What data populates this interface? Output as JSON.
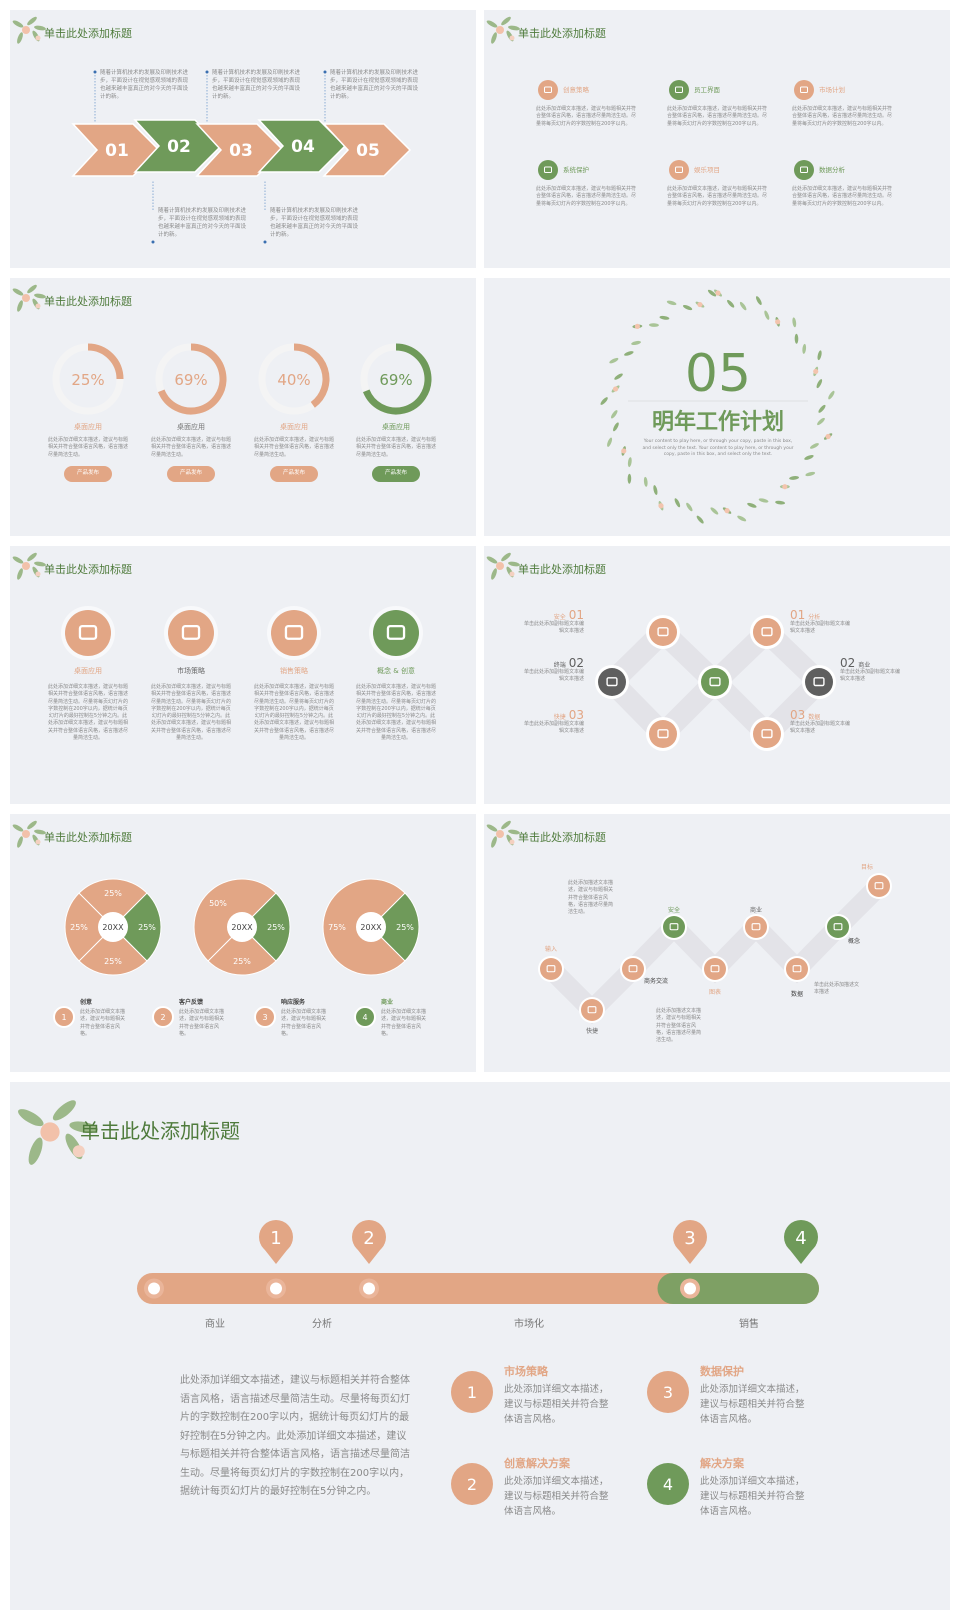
{
  "slide1": {
    "title": "单击此处添加标题",
    "steps": [
      "01",
      "02",
      "03",
      "04",
      "05"
    ],
    "paragraphs": [
      "随着计算机技术的发展及印刷技术进步，平面设计在视觉感观领域的表现也越来越丰富真正的对今天的平面设计的新。",
      "随着计算机技术的发展及印刷技术进步，平面设计在视觉感观领域的表现也越来越丰富真正的对今天的平面设计的新。",
      "随着计算机技术的发展及印刷技术进步，平面设计在视觉感观领域的表现也越来越丰富真正的对今天的平面设计的新。",
      "随着计算机技术的发展及印刷技术进步，平面设计在视觉感观领域的表现也越来越丰富真正的对今天的平面设计的新。",
      "随着计算机技术的发展及印刷技术进步，平面设计在视觉感观领域的表现也越来越丰富真正的对今天的平面设计的新。"
    ]
  },
  "slide2": {
    "title": "单击此处添加标题",
    "items": [
      {
        "name": "创意策略",
        "desc": "此处添加详细文本描述，建议与标题相关并符合整体语言风格，语言描述尽量简洁生动。尽量将每页幻灯片的字数控制在200字以内。"
      },
      {
        "name": "员工界面",
        "desc": "此处添加详细文本描述，建议与标题相关并符合整体语言风格，语言描述尽量简洁生动。尽量将每页幻灯片的字数控制在200字以内。"
      },
      {
        "name": "市场计划",
        "desc": "此处添加详细文本描述，建议与标题相关并符合整体语言风格，语言描述尽量简洁生动。尽量将每页幻灯片的字数控制在200字以内。"
      },
      {
        "name": "系统保护",
        "desc": "此处添加详细文本描述，建议与标题相关并符合整体语言风格，语言描述尽量简洁生动。尽量将每页幻灯片的字数控制在200字以内。"
      },
      {
        "name": "娱乐项目",
        "desc": "此处添加详细文本描述，建议与标题相关并符合整体语言风格，语言描述尽量简洁生动。尽量将每页幻灯片的字数控制在200字以内。"
      },
      {
        "name": "数据分析",
        "desc": "此处添加详细文本描述，建议与标题相关并符合整体语言风格，语言描述尽量简洁生动。尽量将每页幻灯片的字数控制在200字以内。"
      }
    ]
  },
  "slide3": {
    "title": "单击此处添加标题",
    "rings": [
      {
        "value": 25,
        "value_label": "25%",
        "name": "桌面应用",
        "desc": "此处添加详细文本描述，建议与标题相关并符合整体语言风格，语言描述尽量简洁生动。",
        "button": "产品发布"
      },
      {
        "value": 69,
        "value_label": "69%",
        "name": "桌面应用",
        "desc": "此处添加详细文本描述，建议与标题相关并符合整体语言风格，语言描述尽量简洁生动。",
        "button": "产品发布"
      },
      {
        "value": 40,
        "value_label": "40%",
        "name": "桌面应用",
        "desc": "此处添加详细文本描述，建议与标题相关并符合整体语言风格，语言描述尽量简洁生动。",
        "button": "产品发布"
      },
      {
        "value": 69,
        "value_label": "69%",
        "name": "桌面应用",
        "desc": "此处添加详细文本描述，建议与标题相关并符合整体语言风格，语言描述尽量简洁生动。",
        "button": "产品发布"
      }
    ]
  },
  "slide4": {
    "number": "05",
    "title": "明年工作计划",
    "subtitle": "Your content to play here, or through your copy, paste in this box, and select only the text. Your content to play here, or through your copy, paste in this box, and select only the text."
  },
  "slide5": {
    "title": "单击此处添加标题",
    "items": [
      {
        "name": "桌面应用",
        "desc": "此处添加详细文本描述，建议与标题相关并符合整体语言风格，语言描述尽量简洁生动。尽量将每页幻灯片的字数控制在200字以内，据统计每页幻灯片的最好控制在5分钟之内。此处添加详细文本描述，建议与标题相关并符合整体语言风格，语言描述尽量简洁生动。"
      },
      {
        "name": "市场策略",
        "desc": "此处添加详细文本描述，建议与标题相关并符合整体语言风格，语言描述尽量简洁生动。尽量将每页幻灯片的字数控制在200字以内，据统计每页幻灯片的最好控制在5分钟之内。此处添加详细文本描述，建议与标题相关并符合整体语言风格，语言描述尽量简洁生动。"
      },
      {
        "name": "销售策略",
        "desc": "此处添加详细文本描述，建议与标题相关并符合整体语言风格，语言描述尽量简洁生动。尽量将每页幻灯片的字数控制在200字以内，据统计每页幻灯片的最好控制在5分钟之内。此处添加详细文本描述，建议与标题相关并符合整体语言风格，语言描述尽量简洁生动。"
      },
      {
        "name": "概念 & 创意",
        "desc": "此处添加详细文本描述，建议与标题相关并符合整体语言风格，语言描述尽量简洁生动。尽量将每页幻灯片的字数控制在200字以内，据统计每页幻灯片的最好控制在5分钟之内。此处添加详细文本描述，建议与标题相关并符合整体语言风格，语言描述尽量简洁生动。"
      }
    ]
  },
  "slide6": {
    "title": "单击此处添加标题",
    "items": [
      {
        "name": "安全",
        "number": "01",
        "desc": "单击此处添加副标题文本编辑文本描述"
      },
      {
        "name": "终端",
        "number": "02",
        "desc": "单击此处添加副标题文本编辑文本描述"
      },
      {
        "name": "快捷",
        "number": "03",
        "desc": "单击此处添加副标题文本编辑文本描述"
      },
      {
        "name": "分析",
        "number": "01",
        "desc": "单击此处添加副标题文本编辑文本描述"
      },
      {
        "name": "商业",
        "number": "02",
        "desc": "单击此处添加副标题文本编辑文本描述"
      },
      {
        "name": "数据",
        "number": "03",
        "desc": "单击此处添加副标题文本编辑文本描述"
      }
    ]
  },
  "slide7": {
    "title": "单击此处添加标题",
    "donuts": [
      {
        "center": "20XX",
        "segments": [
          {
            "value": 25,
            "label": "25%",
            "color": "#6f9a5a"
          },
          {
            "value": 25,
            "label": "25%",
            "color": "#e2a685"
          },
          {
            "value": 25,
            "label": "25%",
            "color": "#e2a685"
          },
          {
            "value": 25,
            "label": "25%",
            "color": "#e2a685"
          }
        ]
      },
      {
        "center": "20XX",
        "segments": [
          {
            "value": 25,
            "label": "25%",
            "color": "#6f9a5a"
          },
          {
            "value": 25,
            "label": "25%",
            "color": "#e2a685"
          },
          {
            "value": 50,
            "label": "50%",
            "color": "#e2a685"
          }
        ]
      },
      {
        "center": "20XX",
        "segments": [
          {
            "value": 25,
            "label": "25%",
            "color": "#6f9a5a"
          },
          {
            "value": 75,
            "label": "75%",
            "color": "#e2a685"
          }
        ]
      }
    ],
    "legend": [
      {
        "number": "1",
        "name": "创意",
        "desc": "此处添加详细文本描述，建议与标题相关并符合整体语言风格。"
      },
      {
        "number": "2",
        "name": "客户反馈",
        "desc": "此处添加详细文本描述，建议与标题相关并符合整体语言风格。"
      },
      {
        "number": "3",
        "name": "响应服务",
        "desc": "此处添加详细文本描述，建议与标题相关并符合整体语言风格。"
      },
      {
        "number": "4",
        "name": "商业",
        "desc": "此处添加详细文本描述，建议与标题相关并符合整体语言风格。"
      }
    ]
  },
  "slide8": {
    "title": "单击此处添加标题",
    "labels": [
      "输入",
      "快捷",
      "安全",
      "商业",
      "目标",
      "商务交流",
      "图表",
      "数据",
      "概念"
    ],
    "notes": [
      "此处添加描述文本描述，建议与标题相关并符合整体语言风格，语言描述尽量简洁生动。",
      "此处添加描述文本描述，建议与标题相关并符合整体语言风格，语言描述尽量简洁生动。",
      "单击此处添加描述文本描述"
    ]
  },
  "slide9": {
    "title": "单击此处添加标题",
    "milestones": [
      "1",
      "2",
      "3",
      "4"
    ],
    "phases": [
      "商业",
      "分析",
      "市场化",
      "销售"
    ],
    "paragraph": "此处添加详细文本描述，建议与标题相关并符合整体语言风格，语言描述尽量简洁生动。尽量将每页幻灯片的字数控制在200字以内，据统计每页幻灯片的最好控制在5分钟之内。此处添加详细文本描述，建议与标题相关并符合整体语言风格，语言描述尽量简洁生动。尽量将每页幻灯片的字数控制在200字以内，据统计每页幻灯片的最好控制在5分钟之内。",
    "items": [
      {
        "number": "1",
        "name": "市场策略",
        "desc": "此处添加详细文本描述，建议与标题相关并符合整体语言风格。"
      },
      {
        "number": "2",
        "name": "创意解决方案",
        "desc": "此处添加详细文本描述，建议与标题相关并符合整体语言风格。"
      },
      {
        "number": "3",
        "name": "数据保护",
        "desc": "此处添加详细文本描述，建议与标题相关并符合整体语言风格。"
      },
      {
        "number": "4",
        "name": "解决方案",
        "desc": "此处添加详细文本描述，建议与标题相关并符合整体语言风格。"
      }
    ]
  }
}
